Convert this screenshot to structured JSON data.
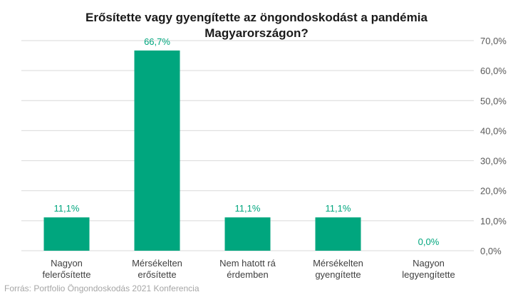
{
  "chart_data": {
    "type": "bar",
    "title_lines": [
      "Erősítette vagy gyengítette az öngondoskodást a pandémia",
      "Magyarországon?"
    ],
    "categories": [
      [
        "Nagyon",
        "felerősítette"
      ],
      [
        "Mérsékelten",
        "erősítette"
      ],
      [
        "Nem hatott rá",
        "érdemben"
      ],
      [
        "Mérsékelten",
        "gyengítette"
      ],
      [
        "Nagyon",
        "legyengítette"
      ]
    ],
    "values": [
      11.1,
      66.7,
      11.1,
      11.1,
      0.0
    ],
    "data_labels": [
      "11,1%",
      "66,7%",
      "11,1%",
      "11,1%",
      "0,0%"
    ],
    "y_ticks": [
      "0,0%",
      "10,0%",
      "20,0%",
      "30,0%",
      "40,0%",
      "50,0%",
      "60,0%",
      "70,0%"
    ],
    "ylim": [
      0,
      70
    ],
    "y_axis_side": "right",
    "grid": true,
    "colors": {
      "bar": "#00a67e",
      "label": "#00a67e",
      "grid": "#d9d9d9"
    }
  },
  "source": "Forrás: Portfolio Öngondoskodás 2021 Konferencia"
}
